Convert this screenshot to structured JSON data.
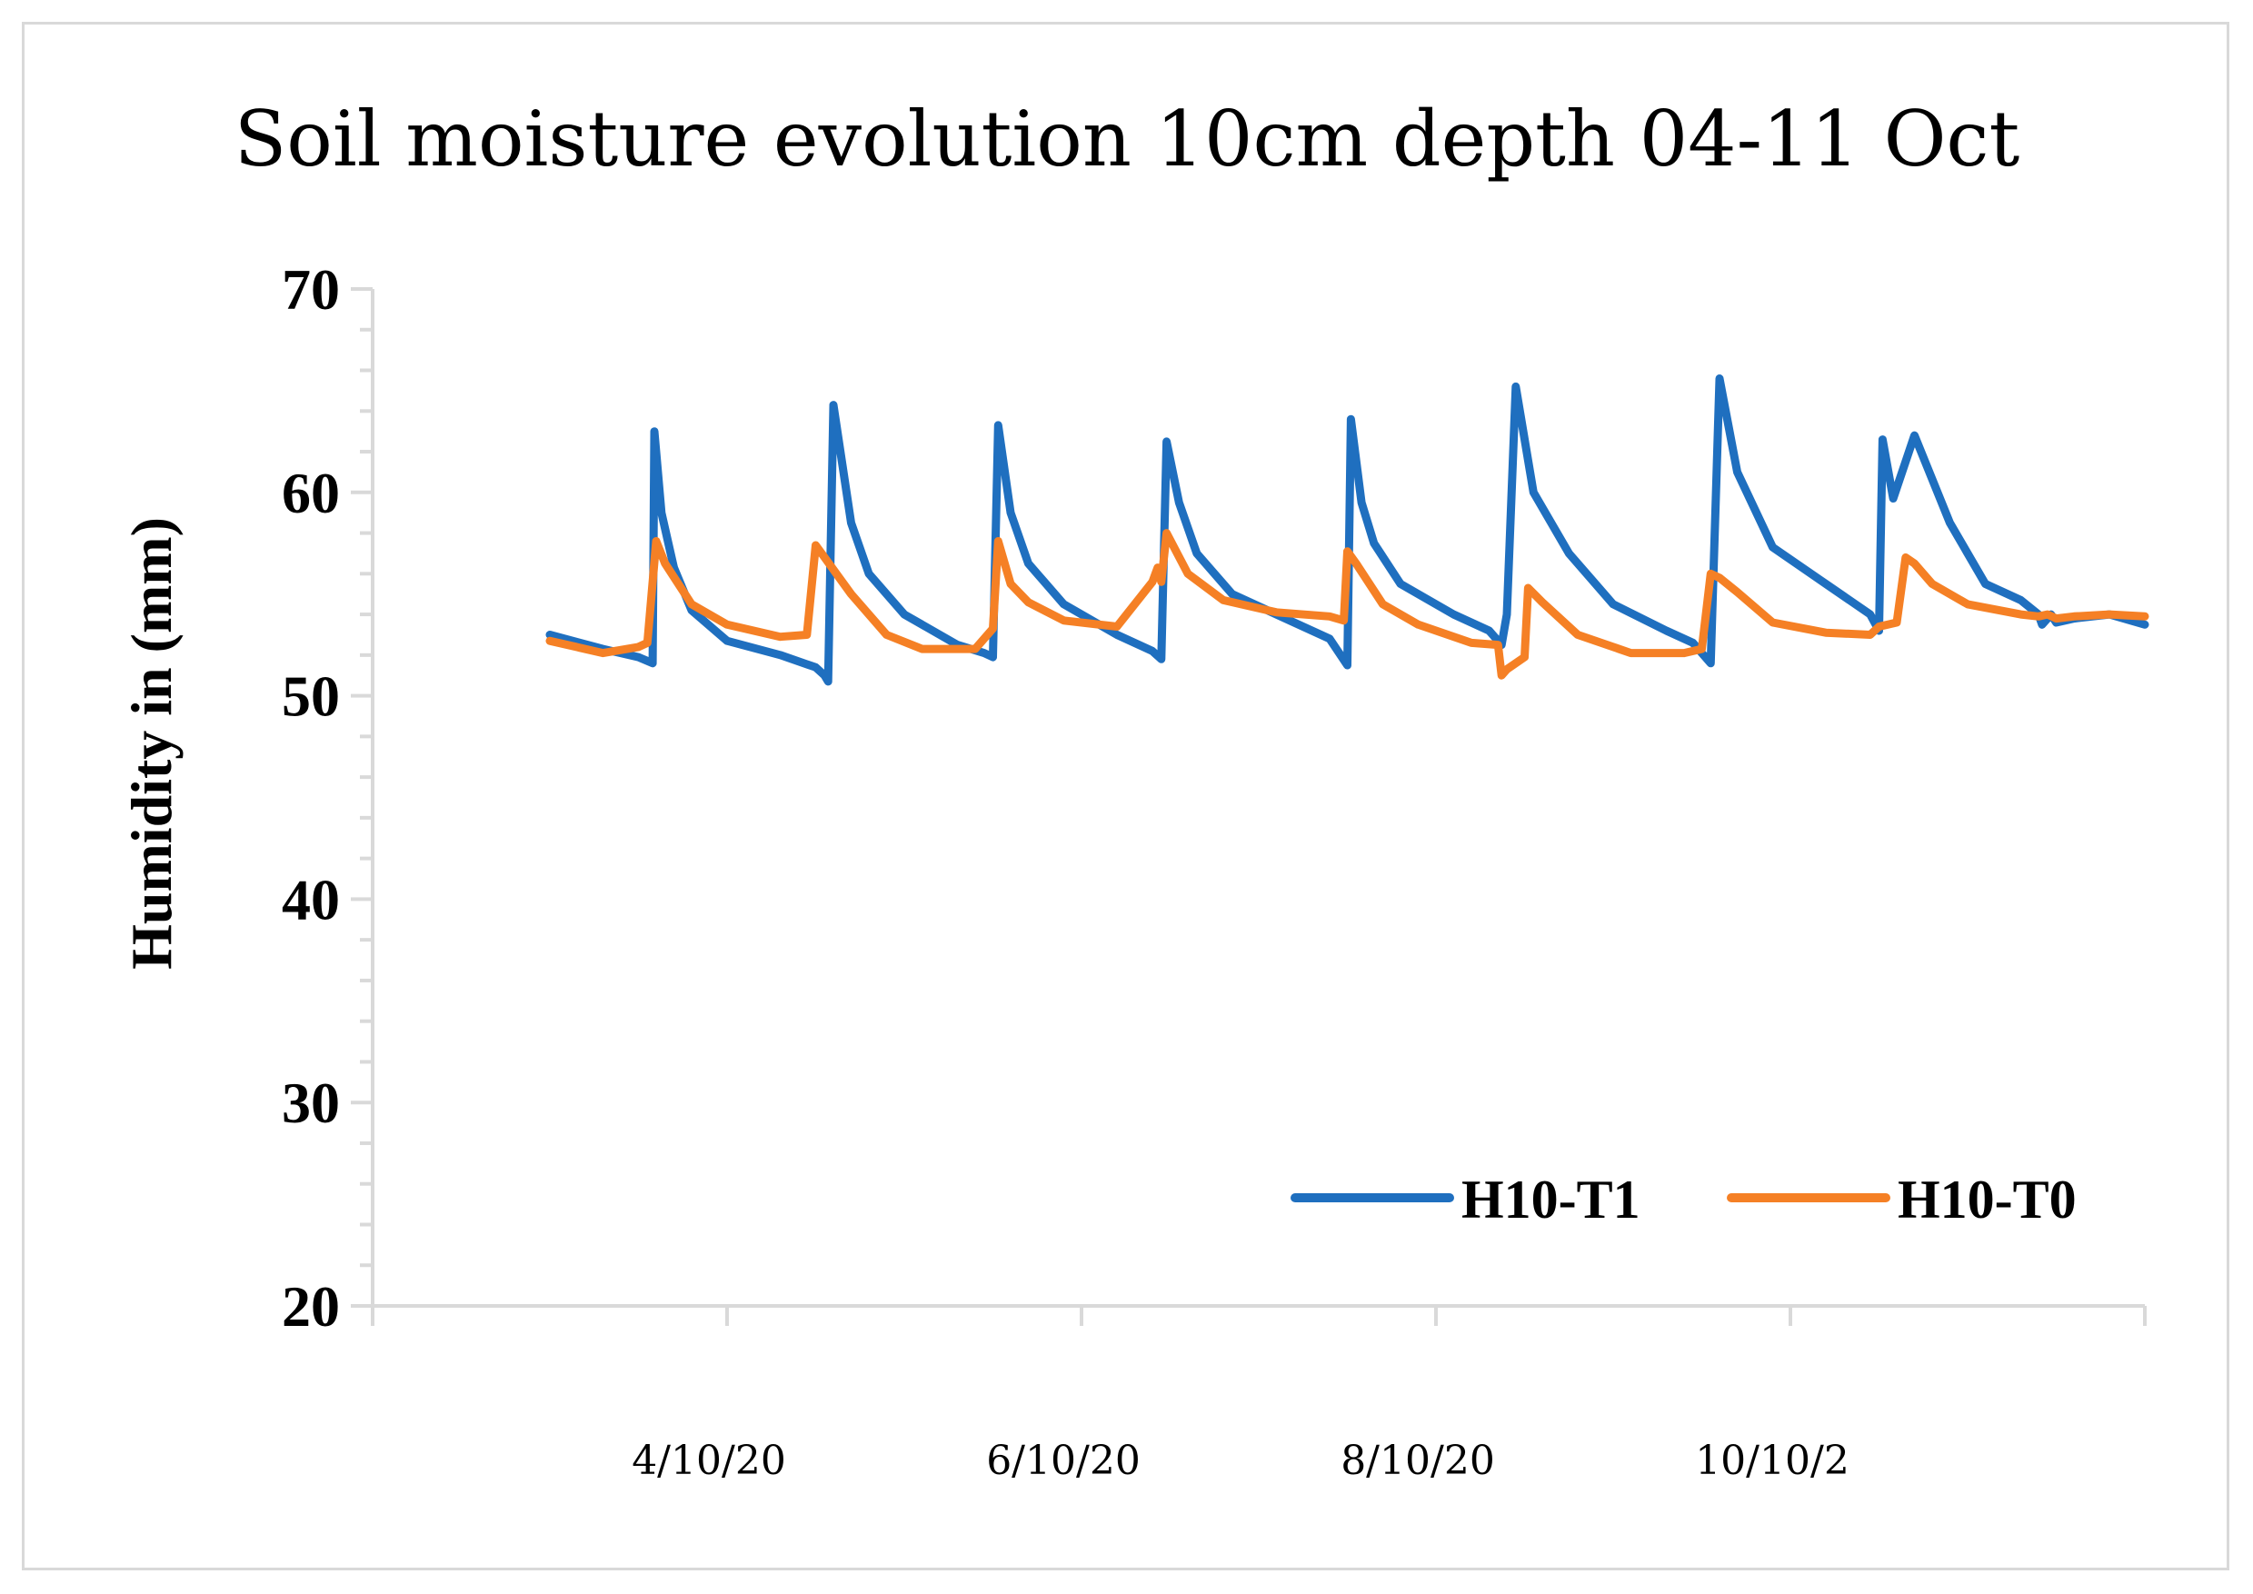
{
  "chart_data": {
    "type": "line",
    "title": "Soil moisture evolution 10cm depth 04-11 Oct",
    "xlabel": "",
    "ylabel": "Humidity in (mm)",
    "ylim": [
      20,
      70
    ],
    "yticks": [
      "20",
      "30",
      "40",
      "50",
      "60",
      "70"
    ],
    "xlim": [
      0,
      10
    ],
    "xtick_positions": [
      2,
      4,
      6,
      8
    ],
    "xtick_labels": [
      "4/10/20",
      "6/10/20",
      "8/10/20",
      "10/10/2"
    ],
    "grid": false,
    "legend_position": "bottom-right",
    "series": [
      {
        "name": "H10-T1",
        "color": "#1f6fbf",
        "x": [
          1.0,
          1.3,
          1.5,
          1.58,
          1.59,
          1.63,
          1.7,
          1.8,
          2.0,
          2.3,
          2.5,
          2.55,
          2.57,
          2.6,
          2.7,
          2.8,
          3.0,
          3.3,
          3.45,
          3.5,
          3.53,
          3.6,
          3.7,
          3.9,
          4.2,
          4.4,
          4.45,
          4.48,
          4.55,
          4.65,
          4.85,
          5.1,
          5.4,
          5.5,
          5.52,
          5.58,
          5.65,
          5.8,
          6.1,
          6.3,
          6.35,
          6.37,
          6.4,
          6.45,
          6.55,
          6.75,
          7.0,
          7.3,
          7.45,
          7.55,
          7.6,
          7.7,
          7.9,
          8.2,
          8.45,
          8.5,
          8.52,
          8.58,
          8.7,
          8.9,
          9.1,
          9.3,
          9.4,
          9.42,
          9.45,
          9.47,
          9.5,
          9.6,
          9.8,
          10.0
        ],
        "values": [
          53.0,
          52.3,
          51.9,
          51.6,
          63.0,
          59.0,
          56.3,
          54.2,
          52.7,
          52.0,
          51.4,
          51.0,
          50.7,
          64.3,
          58.5,
          56.0,
          54.0,
          52.5,
          52.1,
          51.9,
          63.3,
          59.0,
          56.5,
          54.5,
          53.0,
          52.2,
          51.8,
          62.5,
          59.5,
          57.0,
          55.0,
          54.0,
          52.8,
          51.5,
          63.6,
          59.5,
          57.5,
          55.5,
          54.0,
          53.2,
          52.7,
          52.5,
          54.0,
          65.2,
          60.0,
          57.0,
          54.5,
          53.2,
          52.6,
          51.6,
          65.6,
          61.0,
          57.3,
          55.5,
          54.0,
          53.2,
          62.6,
          59.7,
          62.8,
          58.5,
          55.5,
          54.7,
          54.0,
          53.5,
          53.8,
          54.0,
          53.6,
          53.8,
          54.0,
          53.5
        ]
      },
      {
        "name": "H10-T0",
        "color": "#f58025",
        "x": [
          1.0,
          1.3,
          1.5,
          1.55,
          1.6,
          1.65,
          1.8,
          2.0,
          2.3,
          2.45,
          2.5,
          2.55,
          2.7,
          2.9,
          3.1,
          3.4,
          3.5,
          3.53,
          3.6,
          3.7,
          3.9,
          4.2,
          4.4,
          4.43,
          4.45,
          4.48,
          4.6,
          4.8,
          5.1,
          5.4,
          5.48,
          5.5,
          5.55,
          5.7,
          5.9,
          6.2,
          6.35,
          6.37,
          6.4,
          6.5,
          6.52,
          6.6,
          6.8,
          7.1,
          7.4,
          7.5,
          7.55,
          7.6,
          7.7,
          7.9,
          8.2,
          8.45,
          8.5,
          8.6,
          8.65,
          8.7,
          8.8,
          9.0,
          9.3,
          9.4,
          9.45,
          9.5,
          9.6,
          9.8,
          10.0
        ],
        "values": [
          52.7,
          52.1,
          52.4,
          52.6,
          57.6,
          56.5,
          54.5,
          53.5,
          52.9,
          53.0,
          57.4,
          56.8,
          55.0,
          53.0,
          52.3,
          52.3,
          53.3,
          57.6,
          55.5,
          54.6,
          53.7,
          53.4,
          55.6,
          56.3,
          55.6,
          58.0,
          56.0,
          54.7,
          54.1,
          53.9,
          53.7,
          57.1,
          56.5,
          54.5,
          53.5,
          52.6,
          52.5,
          51.0,
          51.3,
          51.9,
          55.3,
          54.6,
          53.0,
          52.1,
          52.1,
          52.3,
          56.0,
          55.8,
          55.1,
          53.6,
          53.1,
          53.0,
          53.4,
          53.6,
          56.8,
          56.5,
          55.5,
          54.5,
          54.0,
          53.9,
          54.0,
          53.8,
          53.9,
          54.0,
          53.9
        ]
      }
    ]
  }
}
